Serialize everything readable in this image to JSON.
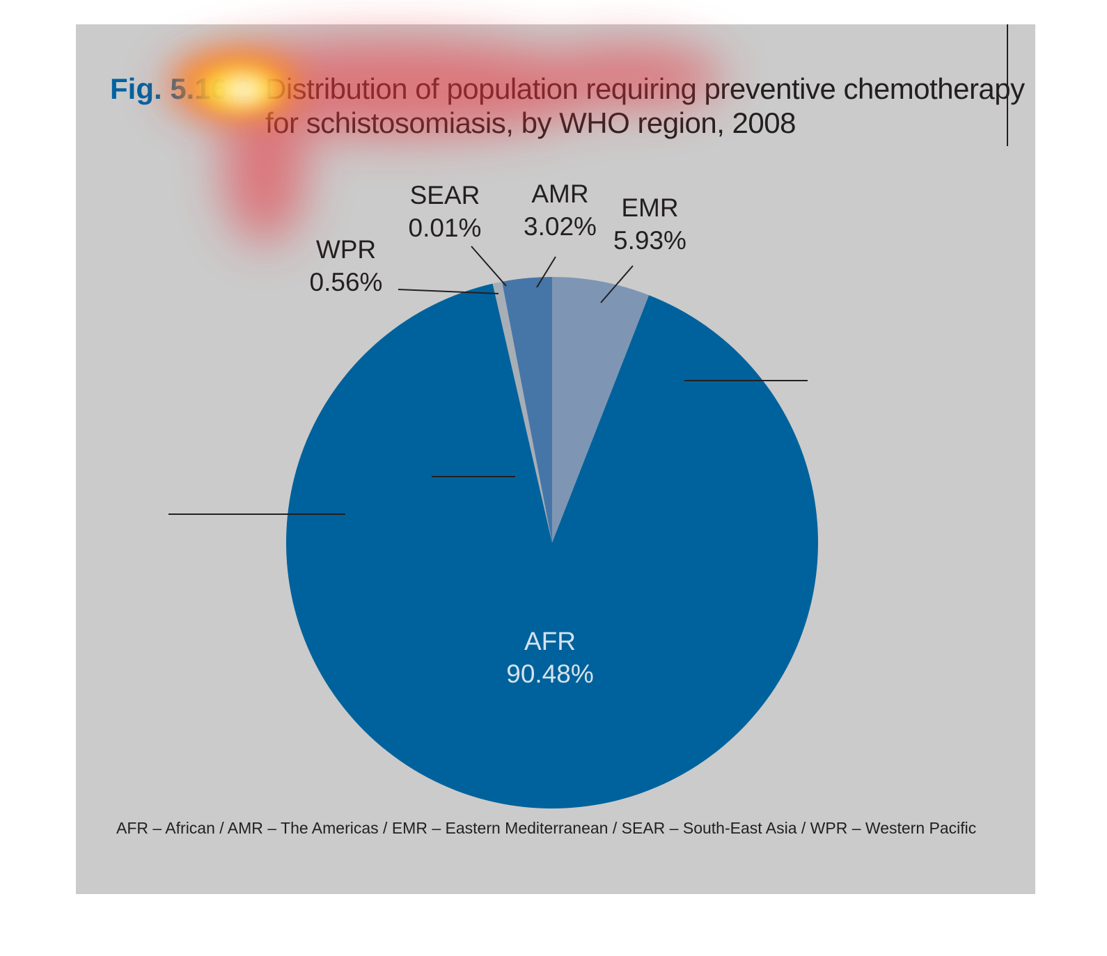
{
  "title": {
    "figure_label": "Fig. 5.16.2",
    "line1": "Distribution of population requiring preventive chemotherapy",
    "line2": "for schistosomiasis, by WHO region, 2008"
  },
  "footnote": "AFR – African / AMR – The Americas / EMR – Eastern Mediterranean / SEAR – South-East Asia / WPR – Western Pacific",
  "chart_data": {
    "type": "pie",
    "start_angle_deg": 0,
    "direction": "clockwise",
    "slices": [
      {
        "label": "EMR",
        "value": 5.93,
        "display": "5.93%",
        "color": "#7e96b4"
      },
      {
        "label": "AFR",
        "value": 90.48,
        "display": "90.48%",
        "color": "#00629c"
      },
      {
        "label": "WPR",
        "value": 0.56,
        "display": "0.56%",
        "color": "#a8aeb5"
      },
      {
        "label": "SEAR",
        "value": 0.01,
        "display": "0.01%",
        "color": "#c0c4c8"
      },
      {
        "label": "AMR",
        "value": 3.02,
        "display": "3.02%",
        "color": "#4676a8"
      }
    ]
  },
  "colors": {
    "panel_background": "#cbcbcb",
    "figure_label": "#0063a0",
    "text": "#231f20"
  }
}
